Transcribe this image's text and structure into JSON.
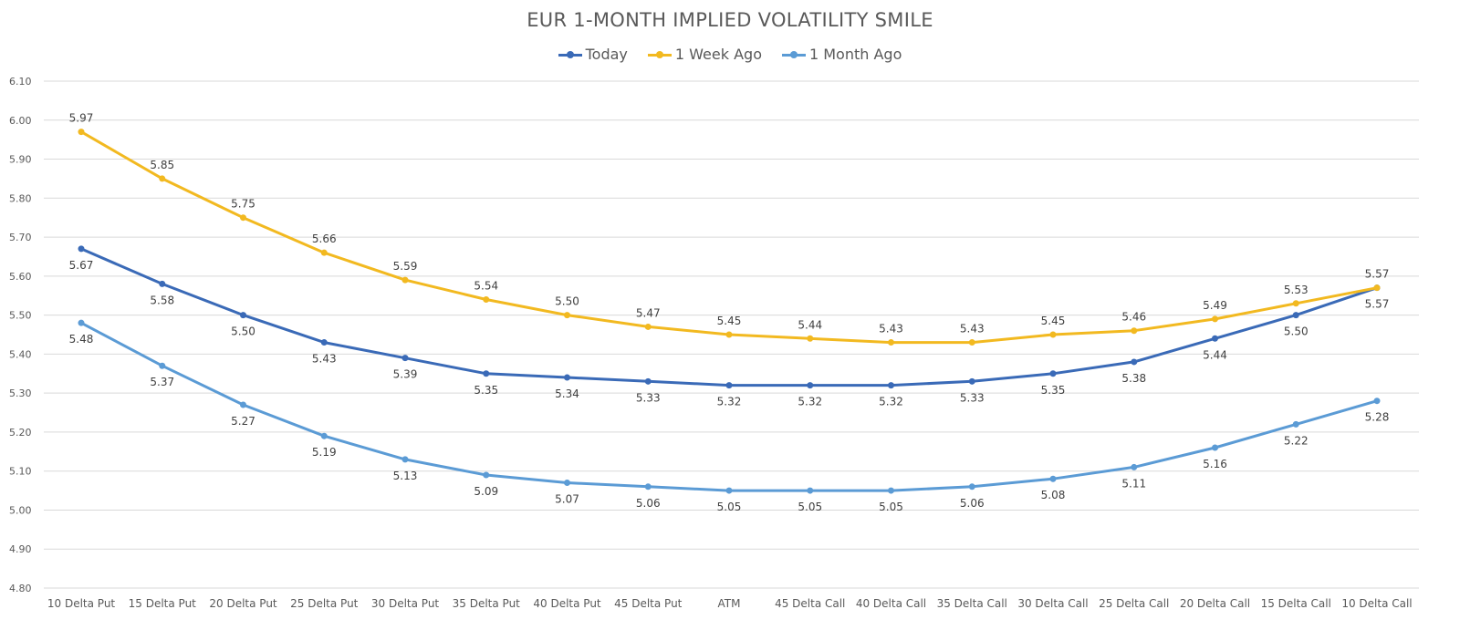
{
  "chart_data": {
    "type": "line",
    "title": "EUR 1-MONTH IMPLIED VOLATILITY SMILE",
    "xlabel": "",
    "ylabel": "",
    "ylim": [
      4.8,
      6.1
    ],
    "yticks": [
      "4.80",
      "4.90",
      "5.00",
      "5.10",
      "5.20",
      "5.30",
      "5.40",
      "5.50",
      "5.60",
      "5.70",
      "5.80",
      "5.90",
      "6.00",
      "6.10"
    ],
    "grid": true,
    "legend_position": "top-center",
    "categories": [
      "10 Delta Put",
      "15 Delta Put",
      "20 Delta Put",
      "25 Delta Put",
      "30 Delta Put",
      "35 Delta Put",
      "40 Delta Put",
      "45 Delta Put",
      "ATM",
      "45 Delta Call",
      "40 Delta Call",
      "35 Delta Call",
      "30 Delta Call",
      "25 Delta Call",
      "20 Delta Call",
      "15 Delta Call",
      "10 Delta Call"
    ],
    "series": [
      {
        "name": "Today",
        "color": "#3a6ab7",
        "label_position": "below",
        "values": [
          5.67,
          5.58,
          5.5,
          5.43,
          5.39,
          5.35,
          5.34,
          5.33,
          5.32,
          5.32,
          5.32,
          5.33,
          5.35,
          5.38,
          5.44,
          5.5,
          5.57
        ],
        "labels": [
          "5.67",
          "5.58",
          "5.50",
          "5.43",
          "5.39",
          "5.35",
          "5.34",
          "5.33",
          "5.32",
          "5.32",
          "5.32",
          "5.33",
          "5.35",
          "5.38",
          "5.44",
          "5.50",
          "5.57"
        ]
      },
      {
        "name": "1 Week Ago",
        "color": "#f2b920",
        "label_position": "above",
        "values": [
          5.97,
          5.85,
          5.75,
          5.66,
          5.59,
          5.54,
          5.5,
          5.47,
          5.45,
          5.44,
          5.43,
          5.43,
          5.45,
          5.46,
          5.49,
          5.53,
          5.57
        ],
        "labels": [
          "5.97",
          "5.85",
          "5.75",
          "5.66",
          "5.59",
          "5.54",
          "5.50",
          "5.47",
          "5.45",
          "5.44",
          "5.43",
          "5.43",
          "5.45",
          "5.46",
          "5.49",
          "5.53",
          "5.57"
        ]
      },
      {
        "name": "1 Month Ago",
        "color": "#5b9bd5",
        "label_position": "below",
        "values": [
          5.48,
          5.37,
          5.27,
          5.19,
          5.13,
          5.09,
          5.07,
          5.06,
          5.05,
          5.05,
          5.05,
          5.06,
          5.08,
          5.11,
          5.16,
          5.22,
          5.28
        ],
        "labels": [
          "5.48",
          "5.37",
          "5.27",
          "5.19",
          "5.13",
          "5.09",
          "5.07",
          "5.06",
          "5.05",
          "5.05",
          "5.05",
          "5.06",
          "5.08",
          "5.11",
          "5.16",
          "5.22",
          "5.28"
        ]
      }
    ]
  }
}
